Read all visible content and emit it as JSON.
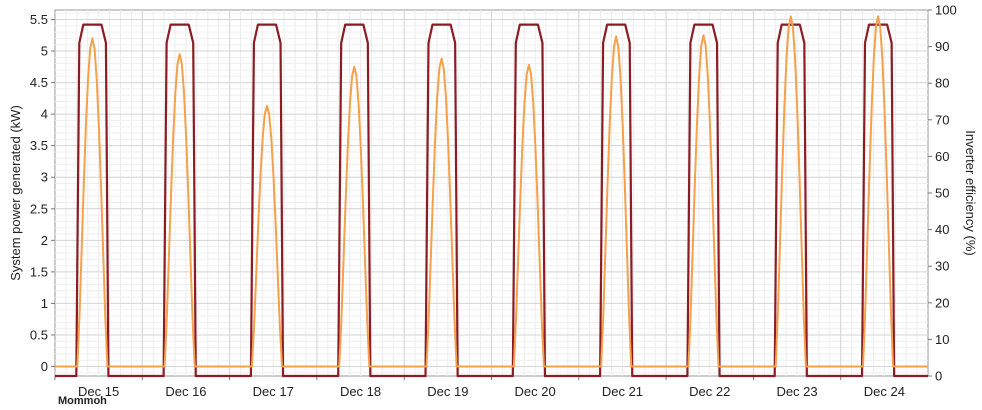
{
  "chart_data": {
    "type": "line",
    "title": "",
    "xlabel": "",
    "ylabel": "System power generated (kW)",
    "y2label": "Inverter efficiency (%)",
    "ylim": [
      -0.15,
      5.65
    ],
    "y2lim": [
      0,
      100
    ],
    "yticks": [
      "0",
      "0.5",
      "1",
      "1.5",
      "2",
      "2.5",
      "3",
      "3.5",
      "4",
      "4.5",
      "5",
      "5.5"
    ],
    "y2ticks": [
      "0",
      "10",
      "20",
      "30",
      "40",
      "50",
      "60",
      "70",
      "80",
      "90",
      "100"
    ],
    "categories": [
      "Dec 15",
      "Dec 16",
      "Dec 17",
      "Dec 18",
      "Dec 19",
      "Dec 20",
      "Dec 21",
      "Dec 22",
      "Dec 23",
      "Dec 24"
    ],
    "grid": true,
    "series": [
      {
        "name": "",
        "axis": "left",
        "color": "#f5a04a",
        "daily_peak_kw": [
          5.2,
          4.95,
          4.13,
          4.75,
          4.88,
          4.78,
          5.23,
          5.25,
          5.55,
          5.55
        ]
      },
      {
        "name": "",
        "axis": "right",
        "color": "#8b1c24",
        "daily_plateau_pct": [
          96,
          96,
          96,
          96,
          96,
          96,
          96,
          96,
          96,
          96
        ],
        "night_value_pct": 0
      }
    ],
    "legend_fragment": "Mommoh"
  }
}
